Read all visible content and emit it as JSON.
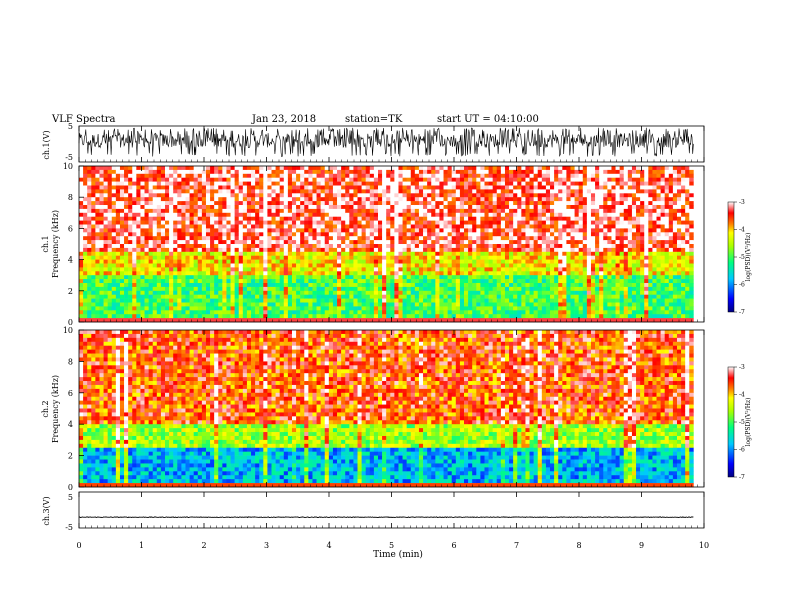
{
  "header": {
    "title": "VLF Spectra",
    "date": "Jan 23, 2018",
    "station": "station=TK",
    "start": "start UT = 04:10:00"
  },
  "chart_data": [
    {
      "type": "line",
      "panel": "ch1-waveform",
      "ylabel": "ch.1(V)",
      "yticks": [
        "5",
        "-5"
      ],
      "ylim": [
        -5,
        5
      ],
      "xlim": [
        0,
        10
      ],
      "data_end_min": 9.83,
      "series": [
        {
          "values_summary": "noisy waveform, mostly between -3 and 4 V, fills 0–9.83 min"
        }
      ]
    },
    {
      "type": "heatmap",
      "panel": "ch1-spectrogram",
      "ylabel": "ch.1\nFrequency (kHz)",
      "yticks": [
        "0",
        "2",
        "4",
        "6",
        "8",
        "10"
      ],
      "ylim": [
        0,
        10
      ],
      "xlim": [
        0,
        10
      ],
      "data_end_min": 9.83,
      "colorbar": {
        "label": "log(PSD)(V²/Hz)",
        "ticks": [
          "-3",
          "-4",
          "-5",
          "-6",
          "-7"
        ],
        "range": [
          -7,
          -3
        ]
      },
      "bands_logpsd": {
        "0-3kHz": -5.0,
        "3-4.5kHz": -4.2,
        "4.5-10kHz": -3.3
      }
    },
    {
      "type": "heatmap",
      "panel": "ch2-spectrogram",
      "ylabel": "ch.2\nFrequency (kHz)",
      "yticks": [
        "0",
        "2",
        "4",
        "6",
        "8",
        "10"
      ],
      "ylim": [
        0,
        10
      ],
      "xlim": [
        0,
        10
      ],
      "data_end_min": 9.83,
      "colorbar": {
        "label": "log(PSD)(V²/Hz)",
        "ticks": [
          "-3",
          "-4",
          "-5",
          "-6",
          "-7"
        ],
        "range": [
          -7,
          -3
        ]
      },
      "bands_logpsd": {
        "0-2.5kHz": -5.8,
        "2.5-4kHz": -4.6,
        "4-10kHz": -3.6
      }
    },
    {
      "type": "line",
      "panel": "ch3-waveform",
      "ylabel": "ch.3(V)",
      "yticks": [
        "5",
        "-5"
      ],
      "ylim": [
        -5,
        5
      ],
      "xlim": [
        0,
        10
      ],
      "data_end_min": 9.83,
      "series": [
        {
          "values_summary": "flat trace near -2 V"
        }
      ]
    }
  ],
  "xaxis": {
    "label": "Time  (min)",
    "ticks": [
      "0",
      "1",
      "2",
      "3",
      "4",
      "5",
      "6",
      "7",
      "8",
      "9",
      "10"
    ]
  }
}
